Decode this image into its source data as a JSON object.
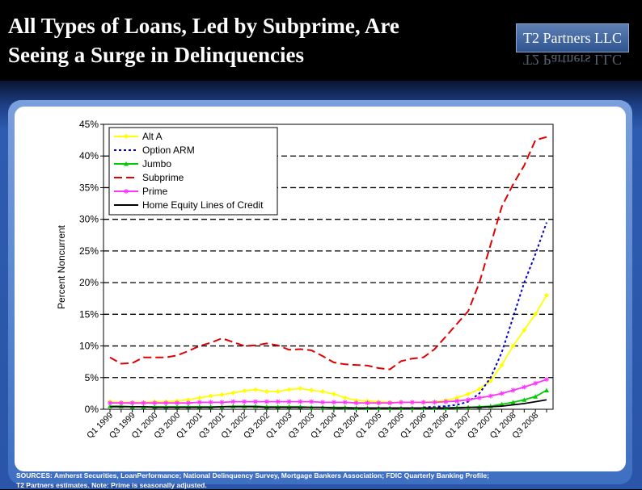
{
  "slide": {
    "title_line_1": "All Types of Loans, Led by Subprime, Are",
    "title_line_2": "Seeing a Surge in Delinquencies",
    "logo": "T2 Partners LLC",
    "sources_line_1": "SOURCES: Amherst Securities, LoanPerformance; National Delinquency Survey, Mortgage Bankers Association; FDIC Quarterly Banking Profile;",
    "sources_line_2": "T2 Partners estimates.  Note: Prime is seasonally adjusted."
  },
  "chart_data": {
    "type": "line",
    "title": "",
    "xlabel": "",
    "ylabel": "Percent Noncurrent",
    "ylim": [
      0,
      45
    ],
    "yticks": [
      "0%",
      "5%",
      "10%",
      "15%",
      "20%",
      "25%",
      "30%",
      "35%",
      "40%",
      "45%"
    ],
    "grid": "horizontal dashed",
    "legend": "top-left",
    "x": [
      "Q1 1999",
      "Q2 1999",
      "Q3 1999",
      "Q4 1999",
      "Q1 2000",
      "Q2 2000",
      "Q3 2000",
      "Q4 2000",
      "Q1 2001",
      "Q2 2001",
      "Q3 2001",
      "Q4 2001",
      "Q1 2002",
      "Q2 2002",
      "Q3 2002",
      "Q4 2002",
      "Q1 2003",
      "Q2 2003",
      "Q3 2003",
      "Q4 2003",
      "Q1 2004",
      "Q2 2004",
      "Q3 2004",
      "Q4 2004",
      "Q1 2005",
      "Q2 2005",
      "Q3 2005",
      "Q4 2005",
      "Q1 2006",
      "Q2 2006",
      "Q3 2006",
      "Q4 2006",
      "Q1 2007",
      "Q2 2007",
      "Q3 2007",
      "Q4 2007",
      "Q1 2008",
      "Q2 2008",
      "Q3 2008",
      "Q4 2008"
    ],
    "x_tick_labels": [
      "Q1 1999",
      "Q3 1999",
      "Q1 2000",
      "Q3 2000",
      "Q1 2001",
      "Q3 2001",
      "Q1 2002",
      "Q3 2002",
      "Q1 2003",
      "Q3 2003",
      "Q1 2004",
      "Q3 2004",
      "Q1 2005",
      "Q3 2005",
      "Q1 2006",
      "Q3 2006",
      "Q1 2007",
      "Q3 2007",
      "Q1 2008",
      "Q3 2008"
    ],
    "series": [
      {
        "name": "Alt A",
        "color": "#ffff00",
        "dash": "solid",
        "marker": "diamond",
        "values": [
          1.2,
          1.1,
          1.1,
          1.1,
          1.2,
          1.2,
          1.3,
          1.5,
          1.8,
          2.1,
          2.3,
          2.6,
          2.9,
          3.1,
          2.8,
          2.8,
          3.1,
          3.3,
          3.0,
          2.8,
          2.4,
          1.8,
          1.4,
          1.3,
          1.2,
          1.1,
          1.1,
          1.1,
          1.1,
          1.2,
          1.4,
          1.8,
          2.4,
          3.2,
          4.5,
          7.0,
          10.0,
          12.5,
          15.0,
          18.0
        ]
      },
      {
        "name": "Option ARM",
        "color": "#0000cc",
        "dash": "dotted",
        "marker": "none",
        "values": [
          null,
          null,
          null,
          null,
          null,
          null,
          null,
          null,
          null,
          null,
          null,
          null,
          null,
          null,
          null,
          null,
          null,
          null,
          null,
          null,
          null,
          null,
          null,
          null,
          null,
          null,
          null,
          null,
          0.3,
          0.4,
          0.5,
          0.7,
          1.2,
          2.5,
          5.0,
          9.0,
          14.5,
          20.0,
          24.5,
          29.5
        ]
      },
      {
        "name": "Jumbo",
        "color": "#00cc00",
        "dash": "solid",
        "marker": "triangle",
        "values": [
          0.5,
          0.5,
          0.4,
          0.4,
          0.4,
          0.4,
          0.4,
          0.4,
          0.4,
          0.4,
          0.4,
          0.5,
          0.5,
          0.5,
          0.4,
          0.4,
          0.4,
          0.4,
          0.3,
          0.3,
          0.3,
          0.3,
          0.2,
          0.2,
          0.2,
          0.2,
          0.2,
          0.2,
          0.2,
          0.2,
          0.2,
          0.3,
          0.3,
          0.4,
          0.5,
          0.8,
          1.1,
          1.5,
          2.0,
          3.0
        ]
      },
      {
        "name": "Subprime",
        "color": "#e00000",
        "dash": "dashed",
        "marker": "none",
        "values": [
          8.2,
          7.2,
          7.3,
          8.2,
          8.2,
          8.2,
          8.5,
          9.2,
          10.0,
          10.5,
          11.2,
          10.6,
          10.0,
          10.1,
          10.4,
          10.1,
          9.4,
          9.5,
          9.3,
          8.4,
          7.4,
          7.1,
          7.0,
          6.9,
          6.5,
          6.3,
          7.6,
          8.0,
          8.2,
          9.5,
          11.5,
          13.5,
          15.5,
          20.0,
          26.0,
          32.0,
          35.5,
          38.5,
          42.5,
          43.0
        ]
      },
      {
        "name": "Prime",
        "color": "#ff33ff",
        "dash": "solid",
        "marker": "star",
        "values": [
          1.0,
          1.0,
          1.0,
          1.0,
          1.0,
          1.0,
          1.0,
          1.0,
          1.1,
          1.1,
          1.1,
          1.2,
          1.2,
          1.2,
          1.2,
          1.2,
          1.2,
          1.2,
          1.2,
          1.1,
          1.1,
          1.1,
          1.0,
          1.0,
          1.0,
          1.0,
          1.1,
          1.1,
          1.1,
          1.1,
          1.2,
          1.3,
          1.5,
          1.8,
          2.1,
          2.5,
          3.0,
          3.5,
          4.1,
          4.7
        ]
      },
      {
        "name": "Home Equity Lines of Credit",
        "color": "#000000",
        "dash": "solid",
        "marker": "none",
        "values": [
          0.4,
          0.4,
          0.4,
          0.4,
          0.3,
          0.3,
          0.3,
          0.3,
          0.3,
          0.3,
          0.4,
          0.4,
          0.4,
          0.4,
          0.3,
          0.3,
          0.3,
          0.3,
          0.3,
          0.3,
          0.2,
          0.2,
          0.2,
          0.2,
          0.2,
          0.2,
          0.2,
          0.2,
          0.2,
          0.2,
          0.2,
          0.2,
          0.3,
          0.3,
          0.4,
          0.5,
          0.7,
          0.9,
          1.2,
          1.5
        ]
      }
    ]
  }
}
